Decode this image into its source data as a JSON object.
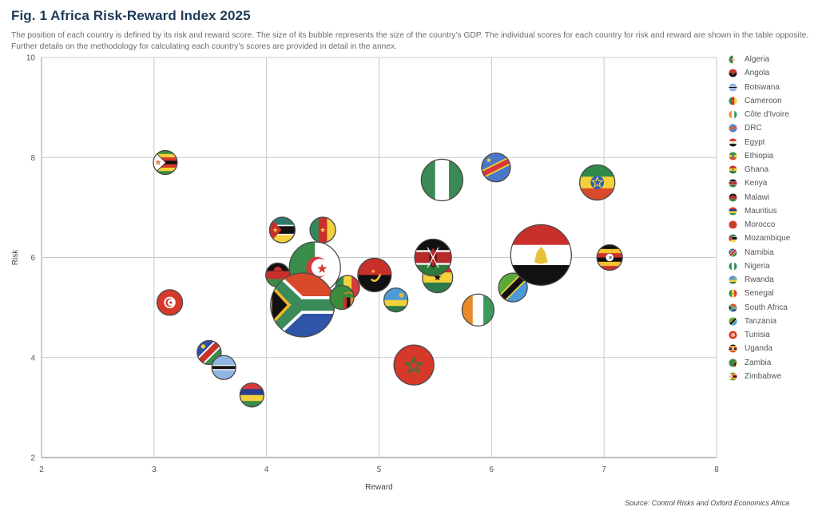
{
  "header": {
    "title": "Fig. 1  Africa Risk-Reward Index 2025",
    "subtitle_lines": [
      "The position of each country is defined by its risk and reward score. The size of its bubble represents the size of the country’s GDP. The individual scores for each country for risk and reward are shown in the table opposite.",
      "Further details on the methodology for calculating each country’s scores are provided in detail in the annex."
    ]
  },
  "source": "Source: Control Risks and Oxford Economics Africa",
  "chart_data": {
    "type": "scatter",
    "subtype": "bubble",
    "title": "Africa Risk-Reward Index 2025",
    "xlabel": "Reward",
    "ylabel": "Risk",
    "xlim": [
      2,
      8
    ],
    "ylim": [
      2,
      10
    ],
    "xticks": [
      "2",
      "3",
      "4",
      "5",
      "6",
      "7",
      "8"
    ],
    "yticks": [
      "2",
      "4",
      "6",
      "8",
      "10"
    ],
    "x_tick_values": [
      2,
      3,
      4,
      5,
      6,
      7,
      8
    ],
    "y_tick_values": [
      2,
      4,
      6,
      8,
      10
    ],
    "grid": true,
    "legend_position": "right",
    "size_meaning": "GDP (relative bubble size)",
    "points": [
      {
        "name": "Algeria",
        "flag": "algeria",
        "reward": 4.43,
        "risk": 5.8,
        "size": 1024
      },
      {
        "name": "Angola",
        "flag": "angola",
        "reward": 4.96,
        "risk": 5.65,
        "size": 441
      },
      {
        "name": "Botswana",
        "flag": "botswana",
        "reward": 3.62,
        "risk": 3.8,
        "size": 225
      },
      {
        "name": "Cameroon",
        "flag": "cameroon",
        "reward": 4.5,
        "risk": 6.55,
        "size": 256
      },
      {
        "name": "Côte d'Ivoire",
        "flag": "cotedivoire",
        "reward": 5.88,
        "risk": 4.95,
        "size": 400
      },
      {
        "name": "DRC",
        "flag": "drc",
        "reward": 6.04,
        "risk": 7.8,
        "size": 324
      },
      {
        "name": "Egypt",
        "flag": "egypt",
        "reward": 6.44,
        "risk": 6.05,
        "size": 1444
      },
      {
        "name": "Ethiopia",
        "flag": "ethiopia",
        "reward": 6.94,
        "risk": 7.5,
        "size": 484
      },
      {
        "name": "Ghana",
        "flag": "ghana",
        "reward": 5.52,
        "risk": 5.6,
        "size": 361
      },
      {
        "name": "Kenya",
        "flag": "kenya",
        "reward": 5.48,
        "risk": 6.0,
        "size": 529
      },
      {
        "name": "Malawi",
        "flag": "malawi",
        "reward": 4.1,
        "risk": 5.65,
        "size": 225
      },
      {
        "name": "Mauritius",
        "flag": "mauritius",
        "reward": 3.87,
        "risk": 3.25,
        "size": 225
      },
      {
        "name": "Morocco",
        "flag": "morocco",
        "reward": 5.31,
        "risk": 3.85,
        "size": 625
      },
      {
        "name": "Mozambique",
        "flag": "mozambique",
        "reward": 4.14,
        "risk": 6.55,
        "size": 256
      },
      {
        "name": "Namibia",
        "flag": "namibia",
        "reward": 3.49,
        "risk": 4.1,
        "size": 225
      },
      {
        "name": "Nigeria",
        "flag": "nigeria",
        "reward": 5.56,
        "risk": 7.55,
        "size": 676
      },
      {
        "name": "Rwanda",
        "flag": "rwanda",
        "reward": 5.15,
        "risk": 5.15,
        "size": 225
      },
      {
        "name": "Senegal",
        "flag": "senegal",
        "reward": 4.72,
        "risk": 5.4,
        "size": 225
      },
      {
        "name": "South Africa",
        "flag": "southafrica",
        "reward": 4.32,
        "risk": 5.05,
        "size": 1600
      },
      {
        "name": "Tanzania",
        "flag": "tanzania",
        "reward": 6.19,
        "risk": 5.4,
        "size": 324
      },
      {
        "name": "Tunisia",
        "flag": "tunisia",
        "reward": 3.14,
        "risk": 5.1,
        "size": 256
      },
      {
        "name": "Uganda",
        "flag": "uganda",
        "reward": 7.05,
        "risk": 6.0,
        "size": 256
      },
      {
        "name": "Zambia",
        "flag": "zambia",
        "reward": 4.67,
        "risk": 5.2,
        "size": 225
      },
      {
        "name": "Zimbabwe",
        "flag": "zimbabwe",
        "reward": 3.1,
        "risk": 7.9,
        "size": 225
      }
    ],
    "draw_order": [
      "Zimbabwe",
      "Tunisia",
      "Namibia",
      "Botswana",
      "Mauritius",
      "Mozambique",
      "Cameroon",
      "Malawi",
      "Algeria",
      "Senegal",
      "South Africa",
      "Zambia",
      "Angola",
      "Rwanda",
      "Nigeria",
      "DRC",
      "Ethiopia",
      "Ghana",
      "Kenya",
      "Morocco",
      "Côte d'Ivoire",
      "Tanzania",
      "Egypt",
      "Uganda"
    ]
  },
  "legend": {
    "items": [
      "Algeria",
      "Angola",
      "Botswana",
      "Cameroon",
      "Côte d'Ivoire",
      "DRC",
      "Egypt",
      "Ethiopia",
      "Ghana",
      "Kenya",
      "Malawi",
      "Mauritius",
      "Morocco",
      "Mozambique",
      "Namibia",
      "Nigeria",
      "Rwanda",
      "Senegal",
      "South Africa",
      "Tanzania",
      "Tunisia",
      "Uganda",
      "Zambia",
      "Zimbabwe"
    ]
  },
  "colors": {
    "title": "#1f3b57",
    "grid": "#c8c8c8",
    "axis": "#bdbdbd",
    "bubble_outline": "#4a4a4a"
  }
}
